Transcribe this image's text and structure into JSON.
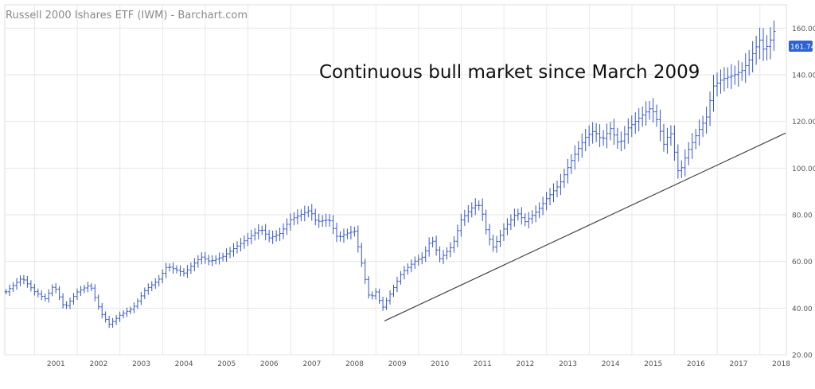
{
  "chart_data": {
    "type": "ohlc",
    "title": "Russell 2000 Ishares ETF (IWM) - Barchart.com",
    "annotation": "Continuous bull market since March 2009",
    "last_price_label": "161.74",
    "ylim": [
      20,
      170
    ],
    "yticks": [
      20,
      40,
      60,
      80,
      100,
      120,
      140,
      160
    ],
    "ytick_labels": [
      "20.00",
      "40.00",
      "60.00",
      "80.00",
      "100.00",
      "120.00",
      "140.00",
      "160.00"
    ],
    "xlim": [
      2000.3,
      2018.62
    ],
    "xtick_labels": [
      "2001",
      "2002",
      "2003",
      "2004",
      "2005",
      "2006",
      "2007",
      "2008",
      "2009",
      "2010",
      "2011",
      "2012",
      "2013",
      "2014",
      "2015",
      "2016",
      "2017",
      "2018"
    ],
    "series_color": "#3355cc",
    "trendline_color": "#444444",
    "trendline": {
      "x": [
        2009.2,
        2018.6
      ],
      "y": [
        34.5,
        115
      ]
    },
    "anchors": [
      [
        2000.33,
        47
      ],
      [
        2000.7,
        53
      ],
      [
        2001.0,
        47
      ],
      [
        2001.25,
        44
      ],
      [
        2001.45,
        50
      ],
      [
        2001.7,
        40
      ],
      [
        2002.0,
        47
      ],
      [
        2002.3,
        50
      ],
      [
        2002.55,
        38
      ],
      [
        2002.75,
        33
      ],
      [
        2003.0,
        37
      ],
      [
        2003.3,
        40
      ],
      [
        2003.6,
        48
      ],
      [
        2003.9,
        52
      ],
      [
        2004.1,
        58
      ],
      [
        2004.5,
        55
      ],
      [
        2004.9,
        62
      ],
      [
        2005.1,
        60
      ],
      [
        2005.4,
        62
      ],
      [
        2005.7,
        66
      ],
      [
        2006.0,
        70
      ],
      [
        2006.3,
        74
      ],
      [
        2006.5,
        70
      ],
      [
        2006.75,
        72
      ],
      [
        2007.0,
        78
      ],
      [
        2007.45,
        82
      ],
      [
        2007.6,
        77
      ],
      [
        2007.9,
        78
      ],
      [
        2008.1,
        70
      ],
      [
        2008.3,
        72
      ],
      [
        2008.5,
        73
      ],
      [
        2008.75,
        52
      ],
      [
        2008.85,
        44
      ],
      [
        2009.0,
        47
      ],
      [
        2009.15,
        40
      ],
      [
        2009.3,
        45
      ],
      [
        2009.6,
        55
      ],
      [
        2009.9,
        60
      ],
      [
        2010.1,
        62
      ],
      [
        2010.3,
        70
      ],
      [
        2010.5,
        61
      ],
      [
        2010.8,
        67
      ],
      [
        2011.0,
        78
      ],
      [
        2011.3,
        84
      ],
      [
        2011.45,
        84
      ],
      [
        2011.6,
        72
      ],
      [
        2011.75,
        66
      ],
      [
        2012.0,
        74
      ],
      [
        2012.3,
        81
      ],
      [
        2012.5,
        77
      ],
      [
        2012.8,
        82
      ],
      [
        2013.0,
        87
      ],
      [
        2013.3,
        93
      ],
      [
        2013.6,
        104
      ],
      [
        2013.9,
        113
      ],
      [
        2014.1,
        116
      ],
      [
        2014.3,
        112
      ],
      [
        2014.5,
        117
      ],
      [
        2014.7,
        110
      ],
      [
        2014.9,
        117
      ],
      [
        2015.2,
        122
      ],
      [
        2015.45,
        126
      ],
      [
        2015.6,
        120
      ],
      [
        2015.75,
        110
      ],
      [
        2015.9,
        116
      ],
      [
        2016.1,
        97
      ],
      [
        2016.3,
        107
      ],
      [
        2016.5,
        114
      ],
      [
        2016.75,
        122
      ],
      [
        2016.9,
        135
      ],
      [
        2017.1,
        138
      ],
      [
        2017.4,
        140
      ],
      [
        2017.6,
        142
      ],
      [
        2017.8,
        148
      ],
      [
        2018.0,
        155
      ],
      [
        2018.1,
        150
      ],
      [
        2018.25,
        155
      ],
      [
        2018.4,
        161.74
      ]
    ]
  }
}
